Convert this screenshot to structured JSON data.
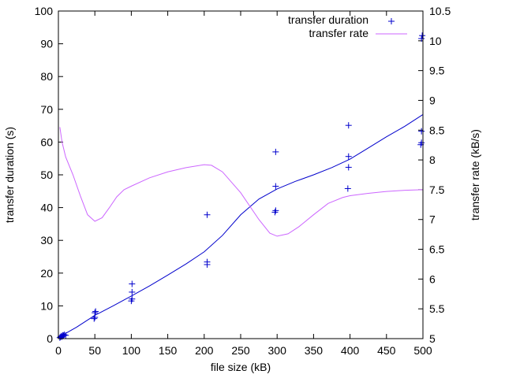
{
  "chart_data": {
    "type": "scatter",
    "xlabel": "file size (kB)",
    "ylabel": "transfer duration (s)",
    "y2label": "transfer rate (kB/s)",
    "xlim": [
      0,
      500
    ],
    "ylim": [
      0,
      100
    ],
    "y2lim": [
      5,
      10.5
    ],
    "x_ticks": [
      "0",
      "50",
      "100",
      "150",
      "200",
      "250",
      "300",
      "350",
      "400",
      "450",
      "500"
    ],
    "y_ticks": [
      "0",
      "10",
      "20",
      "30",
      "40",
      "50",
      "60",
      "70",
      "80",
      "90",
      "100"
    ],
    "y2_ticks": [
      "5",
      "5.5",
      "6",
      "6.5",
      "7",
      "7.5",
      "8",
      "8.5",
      "9",
      "9.5",
      "10",
      "10.5"
    ],
    "grid": false,
    "legend_position": "top-right",
    "series": [
      {
        "name": "transfer duration",
        "kind": "points",
        "axis": "y1",
        "color": "#0000cc",
        "marker": "plus",
        "points": [
          [
            2,
            0.3
          ],
          [
            3,
            0.5
          ],
          [
            4,
            0.8
          ],
          [
            5,
            0.6
          ],
          [
            6,
            1.0
          ],
          [
            7,
            0.9
          ],
          [
            8,
            1.2
          ],
          [
            10,
            1.0
          ],
          [
            49,
            6.1
          ],
          [
            50,
            6.5
          ],
          [
            50,
            7.9
          ],
          [
            51,
            8.3
          ],
          [
            100,
            11.5
          ],
          [
            101,
            12.1
          ],
          [
            101,
            14.2
          ],
          [
            101,
            16.7
          ],
          [
            204,
            22.6
          ],
          [
            204,
            23.4
          ],
          [
            204,
            37.8
          ],
          [
            297,
            38.6
          ],
          [
            298,
            39.1
          ],
          [
            298,
            46.5
          ],
          [
            298,
            57.0
          ],
          [
            397,
            45.8
          ],
          [
            398,
            52.3
          ],
          [
            398,
            55.6
          ],
          [
            398,
            65.1
          ],
          [
            497,
            59.2
          ],
          [
            498,
            59.8
          ],
          [
            498,
            63.3
          ],
          [
            498,
            91.6
          ],
          [
            499,
            92.5
          ]
        ]
      },
      {
        "name": "",
        "kind": "line",
        "axis": "y1",
        "color": "#0000cc",
        "points": [
          [
            2,
            0.2
          ],
          [
            10,
            1.6
          ],
          [
            25,
            3.5
          ],
          [
            50,
            7.1
          ],
          [
            75,
            10.0
          ],
          [
            100,
            13.0
          ],
          [
            125,
            16.1
          ],
          [
            150,
            19.4
          ],
          [
            175,
            22.8
          ],
          [
            200,
            26.5
          ],
          [
            225,
            31.5
          ],
          [
            250,
            37.8
          ],
          [
            275,
            42.6
          ],
          [
            300,
            45.7
          ],
          [
            325,
            48.0
          ],
          [
            350,
            50.0
          ],
          [
            375,
            52.2
          ],
          [
            400,
            54.8
          ],
          [
            425,
            58.2
          ],
          [
            450,
            61.6
          ],
          [
            475,
            64.8
          ],
          [
            500,
            68.4
          ]
        ]
      },
      {
        "name": "transfer rate",
        "kind": "line",
        "axis": "y2",
        "color": "#cc66ff",
        "points": [
          [
            2,
            8.55
          ],
          [
            5,
            8.3
          ],
          [
            10,
            8.05
          ],
          [
            20,
            7.75
          ],
          [
            30,
            7.4
          ],
          [
            40,
            7.08
          ],
          [
            50,
            6.97
          ],
          [
            60,
            7.03
          ],
          [
            70,
            7.2
          ],
          [
            80,
            7.38
          ],
          [
            90,
            7.5
          ],
          [
            100,
            7.56
          ],
          [
            125,
            7.7
          ],
          [
            150,
            7.8
          ],
          [
            175,
            7.87
          ],
          [
            200,
            7.92
          ],
          [
            210,
            7.91
          ],
          [
            225,
            7.8
          ],
          [
            250,
            7.45
          ],
          [
            275,
            7.0
          ],
          [
            290,
            6.77
          ],
          [
            300,
            6.72
          ],
          [
            315,
            6.76
          ],
          [
            330,
            6.88
          ],
          [
            350,
            7.08
          ],
          [
            370,
            7.27
          ],
          [
            390,
            7.37
          ],
          [
            400,
            7.4
          ],
          [
            425,
            7.44
          ],
          [
            450,
            7.47
          ],
          [
            475,
            7.49
          ],
          [
            500,
            7.5
          ]
        ]
      }
    ]
  }
}
